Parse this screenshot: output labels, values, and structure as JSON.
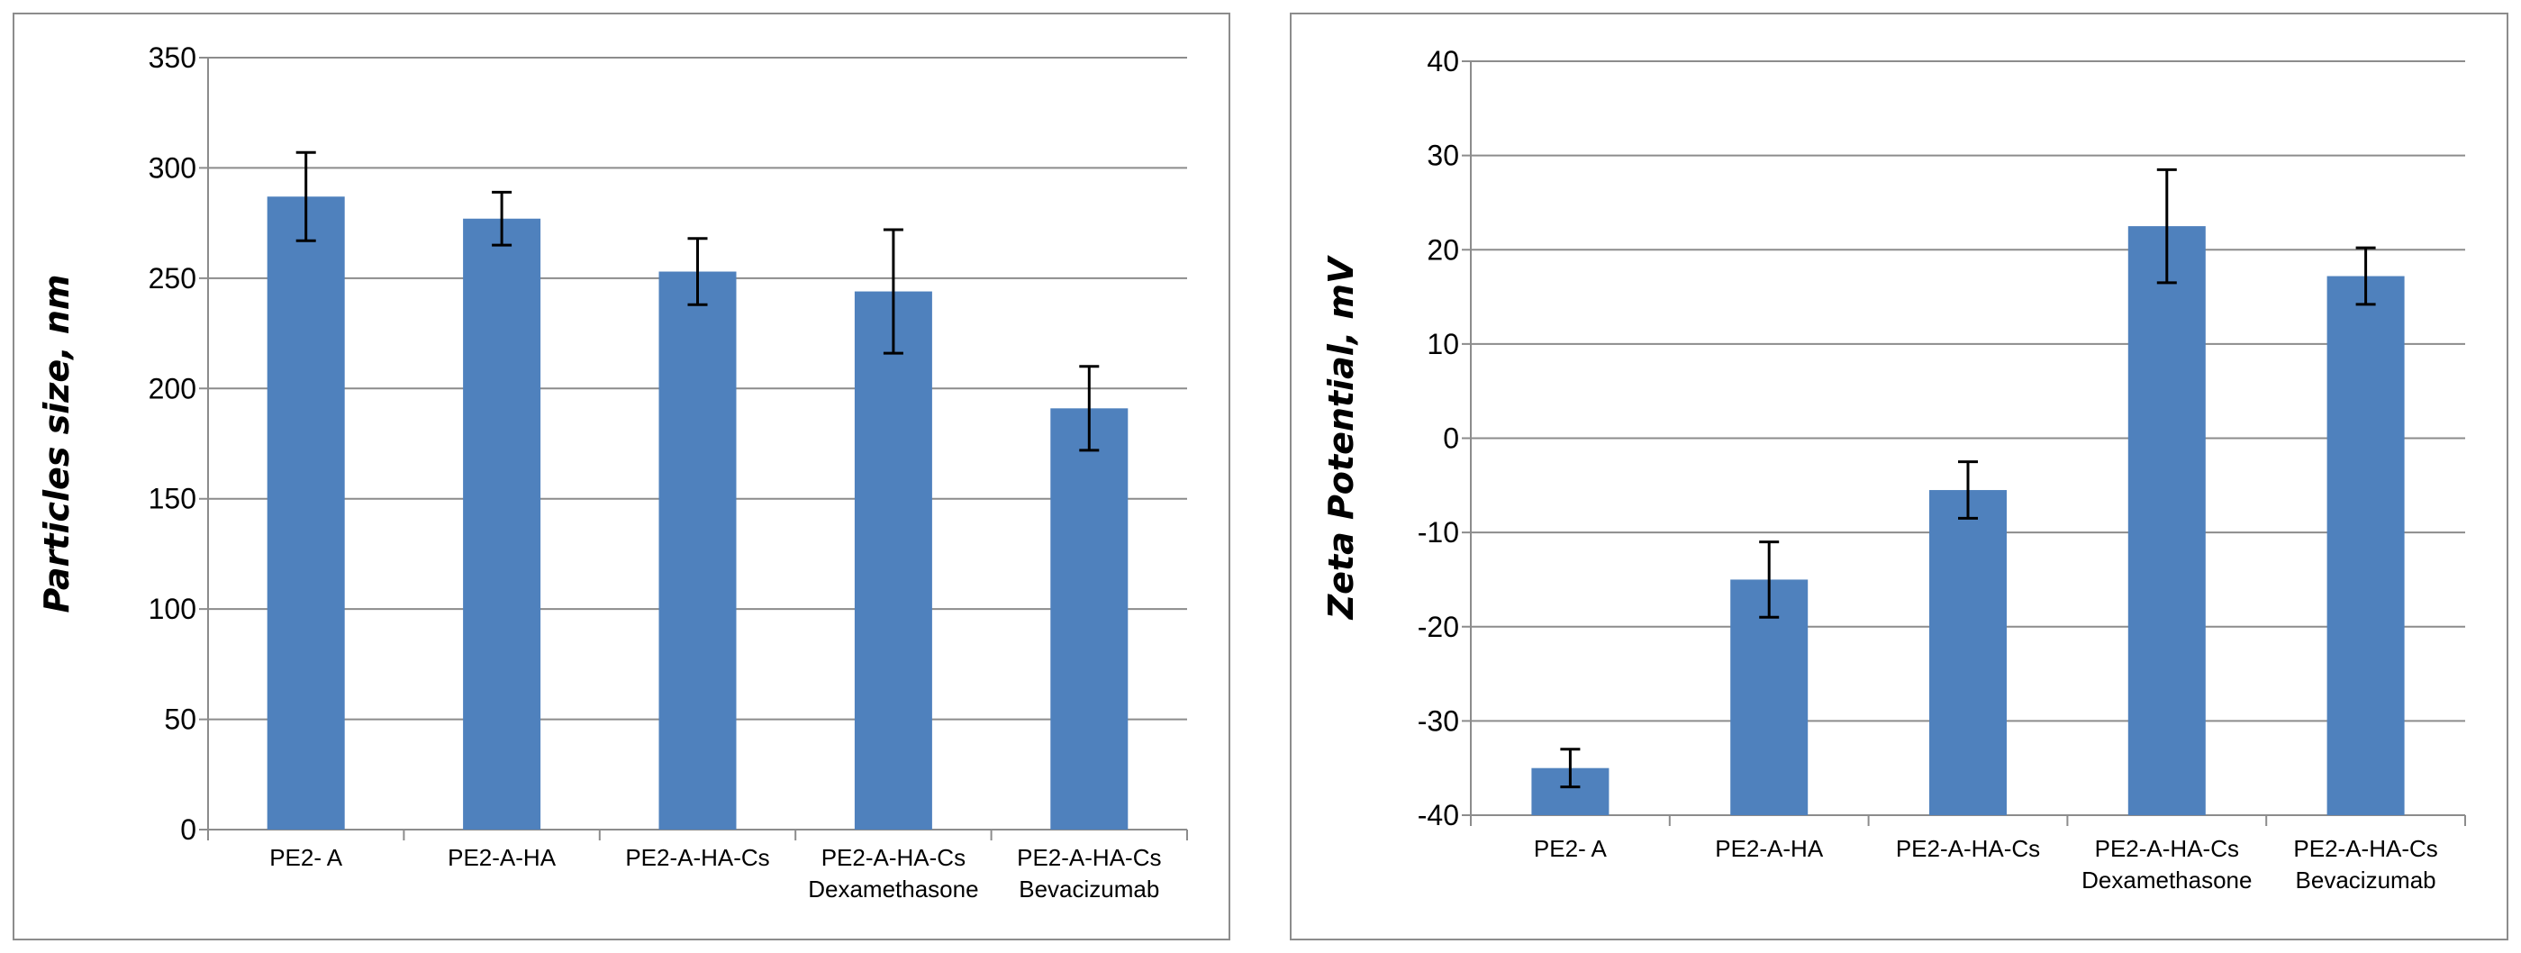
{
  "chart_data": [
    {
      "type": "bar",
      "title": "",
      "xlabel": "",
      "ylabel": "Particles size, nm",
      "ylim": [
        0,
        350
      ],
      "ytick_step": 50,
      "grid": true,
      "bar_color": "#4f81bd",
      "grid_color": "#8c8c8c",
      "categories": [
        [
          "PE2- A"
        ],
        [
          "PE2-A-HA"
        ],
        [
          "PE2-A-HA-Cs"
        ],
        [
          "PE2-A-HA-Cs",
          "Dexamethasone"
        ],
        [
          "PE2-A-HA-Cs",
          "Bevacizumab"
        ]
      ],
      "values": [
        287,
        277,
        253,
        244,
        191
      ],
      "errors": [
        20,
        12,
        15,
        28,
        19
      ]
    },
    {
      "type": "bar",
      "title": "",
      "xlabel": "",
      "ylabel": "Zeta Potential, mV",
      "ylim": [
        -40,
        40
      ],
      "ytick_step": 10,
      "grid": true,
      "bar_color": "#4f81bd",
      "grid_color": "#8c8c8c",
      "categories": [
        [
          "PE2- A"
        ],
        [
          "PE2-A-HA"
        ],
        [
          "PE2-A-HA-Cs"
        ],
        [
          "PE2-A-HA-Cs",
          "Dexamethasone"
        ],
        [
          "PE2-A-HA-Cs",
          "Bevacizumab"
        ]
      ],
      "values": [
        -35,
        -15,
        -5.5,
        22.5,
        17.2
      ],
      "errors": [
        2,
        4,
        3,
        6,
        3
      ]
    }
  ]
}
